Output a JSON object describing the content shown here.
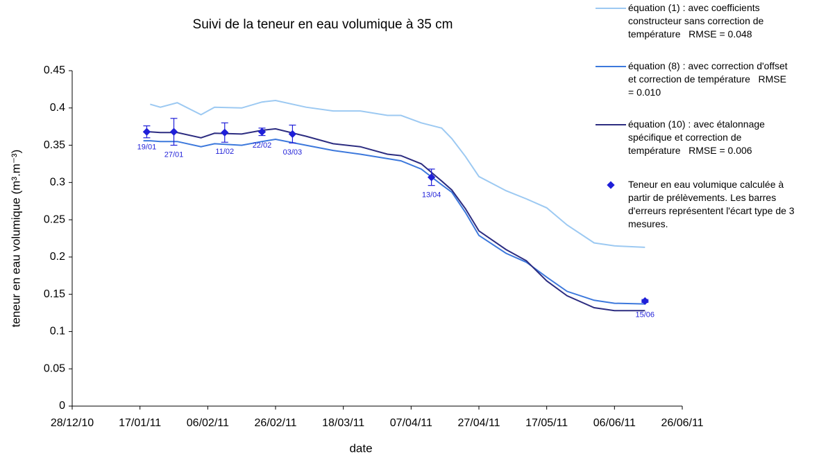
{
  "chart_data": {
    "type": "line",
    "title": "Suivi de la teneur en eau volumique à 35 cm",
    "x_label": "date",
    "y_label": "teneur en eau volumique (m³.m⁻³)",
    "x": [
      "2011-01-18",
      "2011-01-20",
      "2011-01-23",
      "2011-01-28",
      "2011-02-04",
      "2011-02-08",
      "2011-02-16",
      "2011-02-22",
      "2011-02-26",
      "2011-03-07",
      "2011-03-15",
      "2011-03-23",
      "2011-03-31",
      "2011-04-04",
      "2011-04-10",
      "2011-04-16",
      "2011-04-19",
      "2011-04-23",
      "2011-04-27",
      "2011-05-05",
      "2011-05-11",
      "2011-05-17",
      "2011-05-23",
      "2011-05-31",
      "2011-06-06",
      "2011-06-15"
    ],
    "series": [
      {
        "name": "équation (1) : avec coefficients constructeur sans correction de température   RMSE = 0.048",
        "color": "#9cc9f2",
        "values": [
          null,
          0.405,
          0.401,
          0.407,
          0.391,
          0.401,
          0.4,
          0.408,
          0.41,
          0.401,
          0.396,
          0.396,
          0.39,
          0.39,
          0.38,
          0.373,
          0.359,
          0.335,
          0.308,
          0.289,
          0.278,
          0.266,
          0.243,
          0.219,
          0.215,
          0.213
        ]
      },
      {
        "name": "équation (8) : avec correction d'offset et correction de température   RMSE = 0.010",
        "color": "#3c78dc",
        "values": [
          0.356,
          0.356,
          0.355,
          0.355,
          0.348,
          0.352,
          0.35,
          0.355,
          0.358,
          0.35,
          0.343,
          0.338,
          0.332,
          0.329,
          0.318,
          0.297,
          0.287,
          0.26,
          0.229,
          0.205,
          0.193,
          0.173,
          0.154,
          0.142,
          0.138,
          0.137
        ]
      },
      {
        "name": "équation (10) : avec étalonnage spécifique et correction de température   RMSE = 0.006",
        "color": "#2c2c80",
        "values": [
          0.368,
          0.368,
          0.367,
          0.367,
          0.36,
          0.366,
          0.365,
          0.37,
          0.372,
          0.362,
          0.352,
          0.348,
          0.338,
          0.336,
          0.325,
          0.302,
          0.29,
          0.265,
          0.235,
          0.21,
          0.195,
          0.168,
          0.148,
          0.132,
          0.128,
          0.128
        ]
      },
      {
        "name": "Teneur en eau volumique calculée à partir de prélèvements. Les barres d'erreurs représentent l'écart type de 3 mesures.",
        "color": "#1f1fd8",
        "type": "scatter",
        "x": [
          "2011-01-19",
          "2011-01-27",
          "2011-02-11",
          "2011-02-22",
          "2011-03-03",
          "2011-04-13",
          "2011-06-15"
        ],
        "values": [
          0.368,
          0.368,
          0.367,
          0.368,
          0.365,
          0.307,
          0.141
        ],
        "errors": [
          0.008,
          0.018,
          0.013,
          0.005,
          0.012,
          0.011,
          0.002
        ],
        "point_labels": [
          "19/01",
          "27/01",
          "11/02",
          "22/02",
          "03/03",
          "13/04",
          "15/06"
        ]
      }
    ],
    "xlim": [
      "2010-12-28",
      "2011-06-26"
    ],
    "xticks": [
      {
        "value": "2010-12-28",
        "label": "28/12/10"
      },
      {
        "value": "2011-01-17",
        "label": "17/01/11"
      },
      {
        "value": "2011-02-06",
        "label": "06/02/11"
      },
      {
        "value": "2011-02-26",
        "label": "26/02/11"
      },
      {
        "value": "2011-03-18",
        "label": "18/03/11"
      },
      {
        "value": "2011-04-07",
        "label": "07/04/11"
      },
      {
        "value": "2011-04-27",
        "label": "27/04/11"
      },
      {
        "value": "2011-05-17",
        "label": "17/05/11"
      },
      {
        "value": "2011-06-06",
        "label": "06/06/11"
      },
      {
        "value": "2011-06-26",
        "label": "26/06/11"
      }
    ],
    "ylim": [
      0,
      0.45
    ],
    "yticks": [
      0,
      0.05,
      0.1,
      0.15,
      0.2,
      0.25,
      0.3,
      0.35,
      0.4,
      0.45
    ],
    "grid": false
  }
}
